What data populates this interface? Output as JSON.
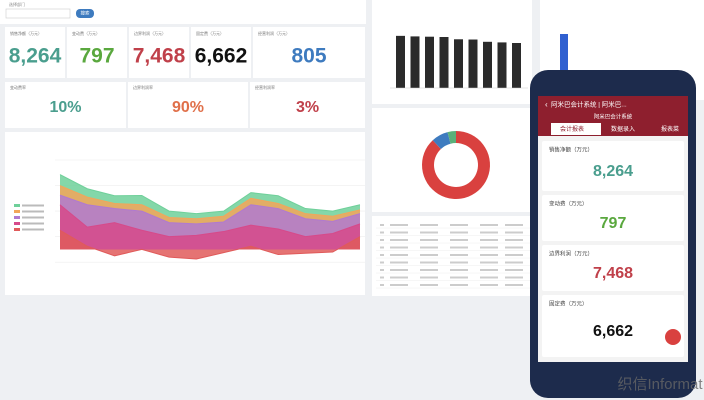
{
  "dashboard": {
    "search_label": "选择部门",
    "search_button": "搜索",
    "kpis": [
      {
        "label": "销售净额（万元）",
        "value": "8,264",
        "color": "#4a9e8e"
      },
      {
        "label": "变动费（万元）",
        "value": "797",
        "color": "#5aa83e"
      },
      {
        "label": "边界利润（万元）",
        "value": "7,468",
        "color": "#c0404a"
      },
      {
        "label": "固定费（万元）",
        "value": "6,662",
        "color": "#111111"
      },
      {
        "label": "经营利润（万元）",
        "value": "805",
        "color": "#3e7bbf"
      }
    ],
    "rates": [
      {
        "label": "变动费率",
        "value": "10%",
        "color": "#4a9e8e"
      },
      {
        "label": "边界利润率",
        "value": "90%",
        "color": "#e0704a"
      },
      {
        "label": "经营利润率",
        "value": "3%",
        "color": "#c0404a"
      }
    ],
    "bar_chart": {
      "values": [
        869,
        860,
        855,
        850,
        812,
        808,
        770,
        760,
        750
      ],
      "color": "#2b2b2b"
    },
    "donut": {
      "values": [
        88,
        8,
        4
      ],
      "colors": [
        "#d9413f",
        "#3e7bbf",
        "#5ab07a"
      ]
    },
    "area_chart": {
      "series": [
        {
          "color": "#6fd09a",
          "values": [
            1172,
            950,
            840,
            845,
            600,
            560,
            600,
            890,
            840,
            640,
            600,
            700
          ]
        },
        {
          "color": "#f2a65a",
          "values": [
            1000,
            820,
            720,
            700,
            500,
            480,
            520,
            800,
            720,
            560,
            520,
            620
          ]
        },
        {
          "color": "#b07ad0",
          "values": [
            850,
            700,
            640,
            600,
            420,
            400,
            430,
            700,
            640,
            480,
            440,
            560
          ]
        },
        {
          "color": "#d64a8a",
          "values": [
            700,
            350,
            420,
            300,
            200,
            220,
            280,
            380,
            320,
            200,
            250,
            400
          ]
        },
        {
          "color": "#e05a5a",
          "values": [
            300,
            50,
            -100,
            0,
            -120,
            -150,
            -50,
            50,
            -80,
            -60,
            -40,
            200
          ]
        }
      ]
    }
  },
  "phone": {
    "title": "阿米巴会计系统 | 阿米巴...",
    "subtitle": "阿米巴会计系统",
    "tabs": [
      "会计报表",
      "数据录入",
      "报表菜"
    ],
    "cards": [
      {
        "label": "销售净额（万元）",
        "value": "8,264",
        "color": "#4a9e8e"
      },
      {
        "label": "变动费（万元）",
        "value": "797",
        "color": "#5aa83e"
      },
      {
        "label": "边界利润（万元）",
        "value": "7,468",
        "color": "#c0404a"
      },
      {
        "label": "固定费（万元）",
        "value": "6,662",
        "color": "#111111"
      }
    ]
  },
  "watermark": "织信Informat"
}
